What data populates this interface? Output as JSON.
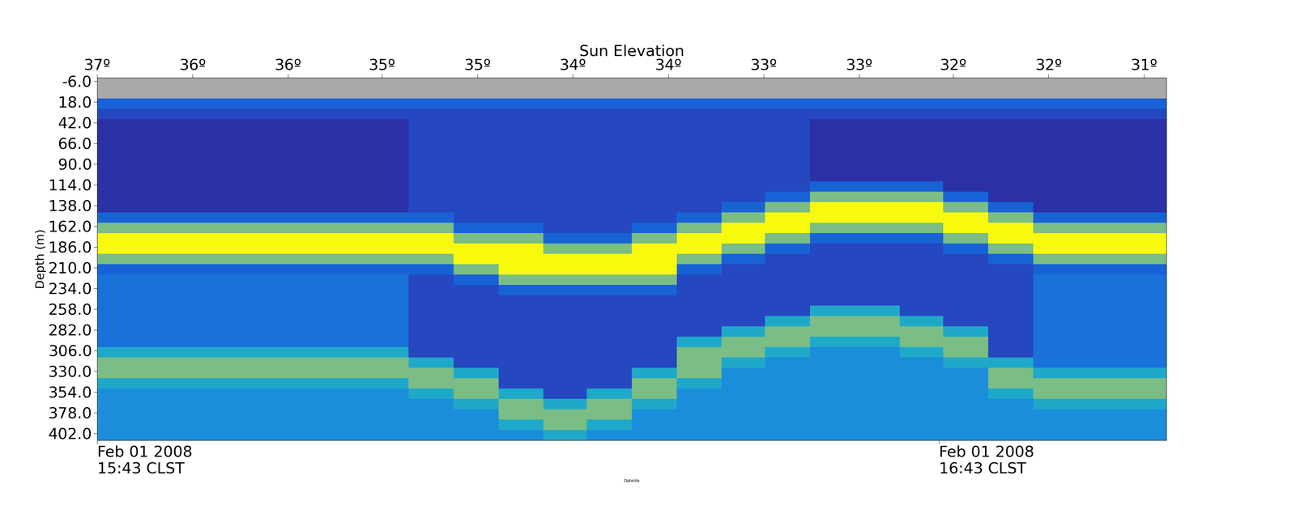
{
  "chart_data": {
    "type": "heatmap",
    "x2_label": "Sun Elevation",
    "y_label": "Depth (m)",
    "x_label": "DateIdx",
    "xlim": [
      0,
      76.2
    ],
    "ylim": [
      410,
      -10
    ],
    "zlim": [
      0,
      10
    ],
    "xticks": [
      {
        "value": 0,
        "label": "Feb 01 2008\n15:43 CLST"
      },
      {
        "value": 60,
        "label": "Feb 01 2008\n16:43 CLST"
      }
    ],
    "x2ticks": [
      {
        "value": 0,
        "label": "37º"
      },
      {
        "value": 6.8,
        "label": "36º"
      },
      {
        "value": 13.6,
        "label": "36º"
      },
      {
        "value": 20.3,
        "label": "35º"
      },
      {
        "value": 27.1,
        "label": "35º"
      },
      {
        "value": 33.9,
        "label": "34º"
      },
      {
        "value": 40.7,
        "label": "34º"
      },
      {
        "value": 47.5,
        "label": "33º"
      },
      {
        "value": 54.3,
        "label": "33º"
      },
      {
        "value": 61.0,
        "label": "32º"
      },
      {
        "value": 67.8,
        "label": "32º"
      },
      {
        "value": 74.6,
        "label": "31º"
      }
    ],
    "yticks": [
      {
        "value": -6,
        "label": "-6.0"
      },
      {
        "value": 18,
        "label": "18.0"
      },
      {
        "value": 42,
        "label": "42.0"
      },
      {
        "value": 66,
        "label": "66.0"
      },
      {
        "value": 90,
        "label": "90.0"
      },
      {
        "value": 114,
        "label": "114.0"
      },
      {
        "value": 138,
        "label": "138.0"
      },
      {
        "value": 162,
        "label": "162.0"
      },
      {
        "value": 186,
        "label": "186.0"
      },
      {
        "value": 210,
        "label": "210.0"
      },
      {
        "value": 234,
        "label": "234.0"
      },
      {
        "value": 258,
        "label": "258.0"
      },
      {
        "value": 282,
        "label": "282.0"
      },
      {
        "value": 306,
        "label": "306.0"
      },
      {
        "value": 330,
        "label": "330.0"
      },
      {
        "value": 354,
        "label": "354.0"
      },
      {
        "value": 378,
        "label": "378.0"
      },
      {
        "value": 402,
        "label": "402.0"
      }
    ],
    "x_edges": [
      0,
      3.2,
      6.4,
      9.5,
      12.7,
      15.9,
      19.1,
      22.2,
      25.4,
      28.6,
      31.8,
      34.9,
      38.1,
      41.3,
      44.5,
      47.6,
      50.8,
      54.0,
      57.2,
      60.3,
      63.5,
      66.7,
      69.9,
      73.0,
      76.2
    ],
    "depth_edges": [
      -10,
      2,
      14,
      26,
      38,
      50,
      62,
      74,
      86,
      98,
      110,
      122,
      134,
      146,
      158,
      170,
      182,
      194,
      206,
      218,
      230,
      242,
      254,
      266,
      278,
      290,
      302,
      314,
      326,
      338,
      350,
      362,
      374,
      386,
      398,
      410
    ],
    "cells_by_column": [
      [
        null,
        null,
        3,
        2,
        1,
        1,
        1,
        1,
        1,
        1,
        1,
        1,
        1,
        3,
        7,
        10,
        10,
        7,
        3,
        3.5,
        3.5,
        3.5,
        3.5,
        3.5,
        3.5,
        3.5,
        5.5,
        7,
        7,
        5.5,
        4.5,
        4.5,
        4.5,
        4.5,
        4.5
      ],
      [
        null,
        null,
        3,
        2,
        1,
        1,
        1,
        1,
        1,
        1,
        1,
        1,
        1,
        3,
        7,
        10,
        10,
        7,
        3,
        3.5,
        3.5,
        3.5,
        3.5,
        3.5,
        3.5,
        3.5,
        5.5,
        7,
        7,
        5.5,
        4.5,
        4.5,
        4.5,
        4.5,
        4.5
      ],
      [
        null,
        null,
        3,
        2,
        1,
        1,
        1,
        1,
        1,
        1,
        1,
        1,
        1,
        3,
        7,
        10,
        10,
        7,
        3,
        3.5,
        3.5,
        3.5,
        3.5,
        3.5,
        3.5,
        3.5,
        5.5,
        7,
        7,
        5.5,
        4.5,
        4.5,
        4.5,
        4.5,
        4.5
      ],
      [
        null,
        null,
        3,
        2,
        1,
        1,
        1,
        1,
        1,
        1,
        1,
        1,
        1,
        3,
        7,
        10,
        10,
        7,
        3,
        3.5,
        3.5,
        3.5,
        3.5,
        3.5,
        3.5,
        3.5,
        5.5,
        7,
        7,
        5.5,
        4.5,
        4.5,
        4.5,
        4.5,
        4.5
      ],
      [
        null,
        null,
        3,
        2,
        1,
        1,
        1,
        1,
        1,
        1,
        1,
        1,
        1,
        3,
        7,
        10,
        10,
        7,
        3,
        3.5,
        3.5,
        3.5,
        3.5,
        3.5,
        3.5,
        3.5,
        5.5,
        7,
        7,
        5.5,
        4.5,
        4.5,
        4.5,
        4.5,
        4.5
      ],
      [
        null,
        null,
        3,
        2,
        1,
        1,
        1,
        1,
        1,
        1,
        1,
        1,
        1,
        3,
        7,
        10,
        10,
        7,
        3,
        3.5,
        3.5,
        3.5,
        3.5,
        3.5,
        3.5,
        3.5,
        5.5,
        7,
        7,
        5.5,
        4.5,
        4.5,
        4.5,
        4.5,
        4.5
      ],
      [
        null,
        null,
        3,
        2,
        1,
        1,
        1,
        1,
        1,
        1,
        1,
        1,
        1,
        3,
        7,
        10,
        10,
        7,
        3,
        3.5,
        3.5,
        3.5,
        3.5,
        3.5,
        3.5,
        3.5,
        5.5,
        7,
        7,
        5.5,
        4.5,
        4.5,
        4.5,
        4.5,
        4.5
      ],
      [
        null,
        null,
        3,
        2,
        2,
        2,
        2,
        2,
        2,
        2,
        2,
        2,
        2,
        3,
        7,
        10,
        10,
        7,
        3,
        2,
        2,
        2,
        2,
        2,
        2,
        2,
        2,
        5.5,
        7,
        7,
        5.5,
        4.5,
        4.5,
        4.5,
        4.5
      ],
      [
        null,
        null,
        3,
        2,
        2,
        2,
        2,
        2,
        2,
        2,
        2,
        2,
        2,
        2,
        3,
        7,
        10,
        10,
        7,
        3,
        2,
        2,
        2,
        2,
        2,
        2,
        2,
        2,
        5.5,
        7,
        7,
        5.5,
        4.5,
        4.5,
        4.5
      ],
      [
        null,
        null,
        3,
        2,
        2,
        2,
        2,
        2,
        2,
        2,
        2,
        2,
        2,
        2,
        3,
        7,
        10,
        10,
        10,
        7,
        3,
        2,
        2,
        2,
        2,
        2,
        2,
        2,
        2,
        2,
        5.5,
        7,
        7,
        5.5,
        4.5
      ],
      [
        null,
        null,
        3,
        2,
        2,
        2,
        2,
        2,
        2,
        2,
        2,
        2,
        2,
        2,
        2,
        3,
        7,
        10,
        10,
        7,
        3,
        2,
        2,
        2,
        2,
        2,
        2,
        2,
        2,
        2,
        2,
        5.5,
        7,
        7,
        5.5
      ],
      [
        null,
        null,
        3,
        2,
        2,
        2,
        2,
        2,
        2,
        2,
        2,
        2,
        2,
        2,
        2,
        3,
        7,
        10,
        10,
        7,
        3,
        2,
        2,
        2,
        2,
        2,
        2,
        2,
        2,
        2,
        5.5,
        7,
        7,
        5.5,
        4.5
      ],
      [
        null,
        null,
        3,
        2,
        2,
        2,
        2,
        2,
        2,
        2,
        2,
        2,
        2,
        2,
        3,
        7,
        10,
        10,
        10,
        7,
        3,
        2,
        2,
        2,
        2,
        2,
        2,
        2,
        5.5,
        7,
        7,
        5.5,
        4.5,
        4.5,
        4.5
      ],
      [
        null,
        null,
        3,
        2,
        2,
        2,
        2,
        2,
        2,
        2,
        2,
        2,
        2,
        3,
        7,
        10,
        10,
        7,
        3,
        2,
        2,
        2,
        2,
        2,
        2,
        5.5,
        7,
        7,
        7,
        5.5,
        4.5,
        4.5,
        4.5,
        4.5,
        4.5
      ],
      [
        null,
        null,
        3,
        2,
        2,
        2,
        2,
        2,
        2,
        2,
        2,
        2,
        3,
        7,
        10,
        10,
        7,
        3,
        2,
        2,
        2,
        2,
        2,
        2,
        5.5,
        7,
        7,
        5.5,
        4.5,
        4.5,
        4.5,
        4.5,
        4.5,
        4.5,
        4.5
      ],
      [
        null,
        null,
        3,
        2,
        2,
        2,
        2,
        2,
        2,
        2,
        2,
        3,
        7,
        10,
        10,
        7,
        3,
        2,
        2,
        2,
        2,
        2,
        2,
        5.5,
        7,
        7,
        5.5,
        4.5,
        4.5,
        4.5,
        4.5,
        4.5,
        4.5,
        4.5,
        4.5
      ],
      [
        null,
        null,
        3,
        2,
        1,
        1,
        1,
        1,
        1,
        1,
        3,
        7,
        10,
        10,
        7,
        3,
        2,
        2,
        2,
        2,
        2,
        2,
        5.5,
        7,
        7,
        5.5,
        4.5,
        4.5,
        4.5,
        4.5,
        4.5,
        4.5,
        4.5,
        4.5,
        4.5
      ],
      [
        null,
        null,
        3,
        2,
        1,
        1,
        1,
        1,
        1,
        1,
        3,
        7,
        10,
        10,
        7,
        3,
        2,
        2,
        2,
        2,
        2,
        2,
        5.5,
        7,
        7,
        5.5,
        4.5,
        4.5,
        4.5,
        4.5,
        4.5,
        4.5,
        4.5,
        4.5,
        4.5
      ],
      [
        null,
        null,
        3,
        2,
        1,
        1,
        1,
        1,
        1,
        1,
        3,
        7,
        10,
        10,
        7,
        3,
        2,
        2,
        2,
        2,
        2,
        2,
        2,
        5.5,
        7,
        7,
        5.5,
        4.5,
        4.5,
        4.5,
        4.5,
        4.5,
        4.5,
        4.5,
        4.5
      ],
      [
        null,
        null,
        3,
        2,
        1,
        1,
        1,
        1,
        1,
        1,
        1,
        3,
        7,
        10,
        10,
        7,
        3,
        2,
        2,
        2,
        2,
        2,
        2,
        2,
        5.5,
        7,
        7,
        5.5,
        4.5,
        4.5,
        4.5,
        4.5,
        4.5,
        4.5,
        4.5
      ],
      [
        null,
        null,
        3,
        2,
        1,
        1,
        1,
        1,
        1,
        1,
        1,
        1,
        3,
        7,
        10,
        10,
        7,
        3,
        2,
        2,
        2,
        2,
        2,
        2,
        2,
        2,
        2,
        5.5,
        7,
        7,
        5.5,
        4.5,
        4.5,
        4.5,
        4.5
      ],
      [
        null,
        null,
        3,
        2,
        1,
        1,
        1,
        1,
        1,
        1,
        1,
        1,
        1,
        3,
        7,
        10,
        10,
        7,
        3,
        3.5,
        3.5,
        3.5,
        3.5,
        3.5,
        3.5,
        3.5,
        3.5,
        3.5,
        5.5,
        7,
        7,
        5.5,
        4.5,
        4.5,
        4.5
      ],
      [
        null,
        null,
        3,
        2,
        1,
        1,
        1,
        1,
        1,
        1,
        1,
        1,
        1,
        3,
        7,
        10,
        10,
        7,
        3,
        3.5,
        3.5,
        3.5,
        3.5,
        3.5,
        3.5,
        3.5,
        3.5,
        3.5,
        5.5,
        7,
        7,
        5.5,
        4.5,
        4.5,
        4.5
      ],
      [
        null,
        null,
        3,
        2,
        1,
        1,
        1,
        1,
        1,
        1,
        1,
        1,
        1,
        3,
        7,
        10,
        10,
        7,
        3,
        3.5,
        3.5,
        3.5,
        3.5,
        3.5,
        3.5,
        3.5,
        3.5,
        3.5,
        5.5,
        7,
        7,
        5.5,
        4.5,
        4.5,
        4.5
      ]
    ]
  }
}
